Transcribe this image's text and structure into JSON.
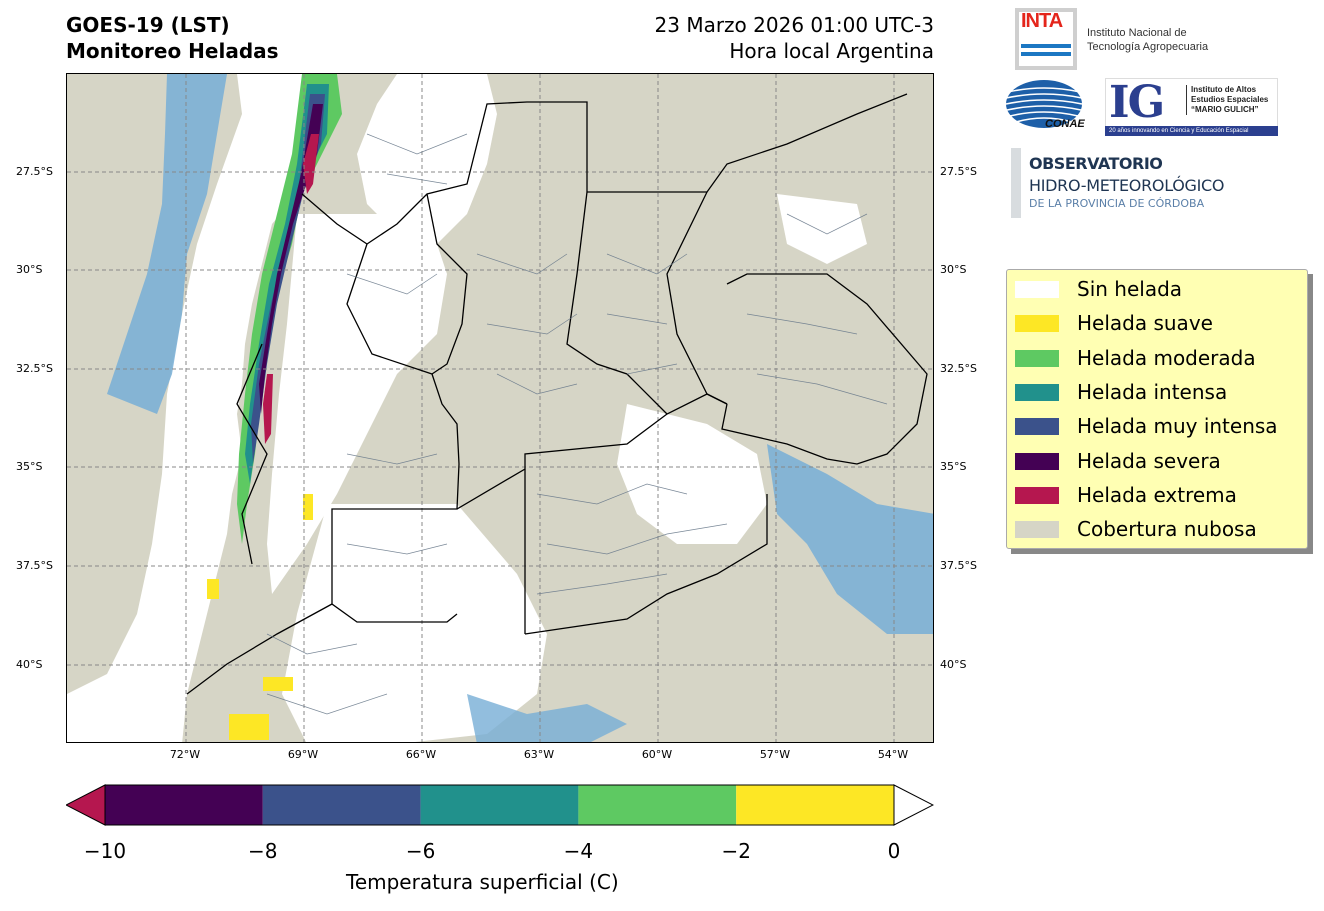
{
  "header": {
    "title_line1": "GOES-19 (LST)",
    "title_line2": "Monitoreo Heladas",
    "datetime": "23 Marzo 2026 01:00 UTC-3",
    "timezone_note": "Hora local Argentina"
  },
  "map": {
    "lat_labels": [
      "27.5°S",
      "30°S",
      "32.5°S",
      "35°S",
      "37.5°S",
      "40°S"
    ],
    "lon_labels": [
      "72°W",
      "69°W",
      "66°W",
      "63°W",
      "60°W",
      "57°W",
      "54°W"
    ],
    "colors": {
      "cloud": "#d6d5c6",
      "no_frost": "#ffffff",
      "water_blue": "#77aed6",
      "province_border": "#000000",
      "department_border": "#6b7b8c"
    }
  },
  "logos": {
    "inta_word": "INTA",
    "inta_line1": "Instituto Nacional de",
    "inta_line2": "Tecnología Agropecuaria",
    "conae_word": "CONAE",
    "ig_mark": "IG",
    "ig_line1": "Instituto de Altos",
    "ig_line2": "Estudios Espaciales",
    "ig_line3": "“MARIO GULICH”",
    "ig_bar": "20 años innovando en Ciencia y Educación Espacial",
    "obs_line1": "OBSERVATORIO",
    "obs_line2": "HIDRO-METEOROLÓGICO",
    "obs_line3": "DE LA PROVINCIA DE CÓRDOBA"
  },
  "legend": {
    "items": [
      {
        "label": "Sin helada",
        "color": "#ffffff"
      },
      {
        "label": "Helada suave",
        "color": "#fde725"
      },
      {
        "label": "Helada moderada",
        "color": "#5ec962"
      },
      {
        "label": "Helada intensa",
        "color": "#21918c"
      },
      {
        "label": "Helada muy intensa",
        "color": "#3b528b"
      },
      {
        "label": "Helada severa",
        "color": "#440154"
      },
      {
        "label": "Helada extrema",
        "color": "#b5174f"
      },
      {
        "label": "Cobertura nubosa",
        "color": "#d6d5c6"
      }
    ]
  },
  "colorbar": {
    "ticks": [
      "−10",
      "−8",
      "−6",
      "−4",
      "−2",
      "0"
    ],
    "label": "Temperatura superficial (C)",
    "segments": [
      {
        "from": -10,
        "to": -8,
        "color": "#440154"
      },
      {
        "from": -8,
        "to": -6,
        "color": "#3b528b"
      },
      {
        "from": -6,
        "to": -4,
        "color": "#21918c"
      },
      {
        "from": -4,
        "to": -2,
        "color": "#5ec962"
      },
      {
        "from": -2,
        "to": 0,
        "color": "#fde725"
      }
    ],
    "under_color": "#b5174f",
    "over_color": "#ffffff"
  }
}
